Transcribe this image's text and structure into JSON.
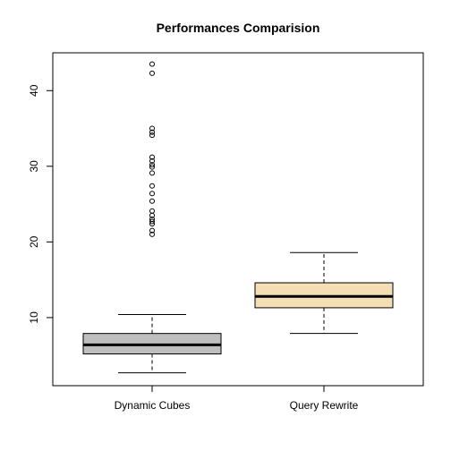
{
  "chart_data": {
    "type": "boxplot",
    "title": "Performances Comparision",
    "xlabel": "",
    "ylabel": "",
    "ylim": [
      1,
      45
    ],
    "yticks": [
      10,
      20,
      30,
      40
    ],
    "grid": false,
    "legend": "none",
    "categories": [
      "Dynamic Cubes",
      "Query Rewrite"
    ],
    "boxes": [
      {
        "category": "Dynamic Cubes",
        "fill": "#bebebe",
        "whisker_low": 2.7,
        "q1": 5.2,
        "median": 6.4,
        "q3": 7.9,
        "whisker_high": 10.4,
        "outliers": [
          21.0,
          21.5,
          22.4,
          22.7,
          23.0,
          23.5,
          24.1,
          25.4,
          26.4,
          27.4,
          29.1,
          29.9,
          30.2,
          30.7,
          31.2,
          34.1,
          34.5,
          35.0,
          42.3,
          43.5
        ]
      },
      {
        "category": "Query Rewrite",
        "fill": "#f5deb3",
        "whisker_low": 7.9,
        "q1": 11.3,
        "median": 12.8,
        "q3": 14.6,
        "whisker_high": 18.6,
        "outliers": []
      }
    ]
  }
}
